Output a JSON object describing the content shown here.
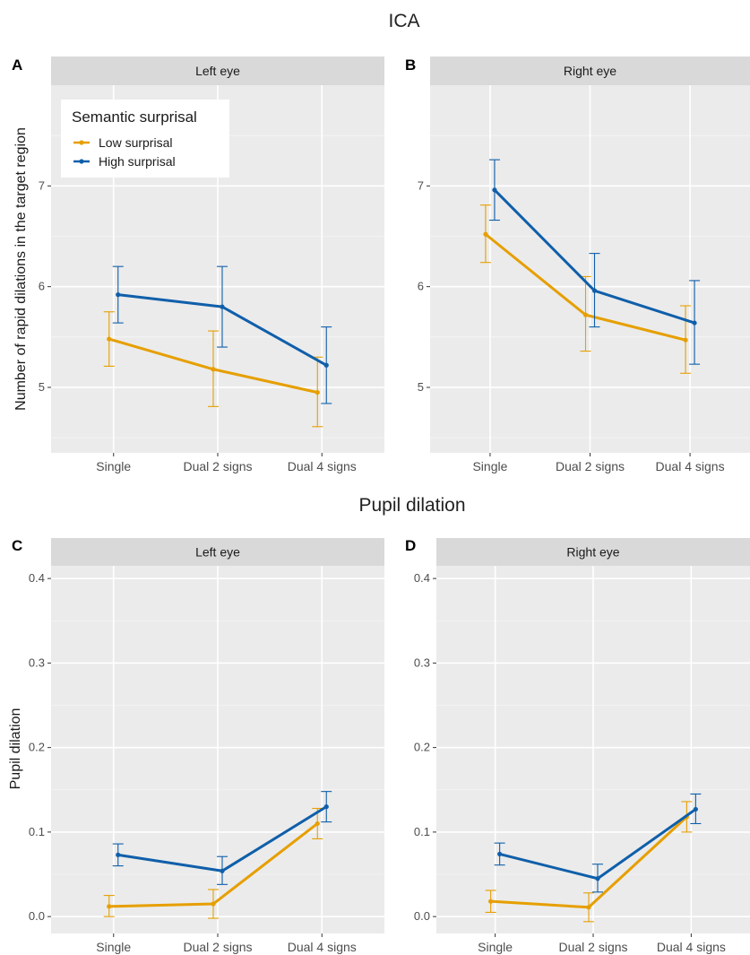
{
  "section_titles": {
    "top": "ICA",
    "bottom": "Pupil dilation"
  },
  "legend": {
    "title": "Semantic surprisal",
    "items": [
      {
        "label": "Low surprisal",
        "color": "#E69F00"
      },
      {
        "label": "High surprisal",
        "color": "#0F5FAA"
      }
    ]
  },
  "chart_data": [
    {
      "panel": "A",
      "type": "line",
      "facet": "Left eye",
      "categories": [
        "Single",
        "Dual 2 signs",
        "Dual 4 signs"
      ],
      "ylabel": "Number of rapid dilations in the target region",
      "ylim": [
        4.35,
        8.0
      ],
      "yticks": [
        5,
        6,
        7
      ],
      "grid": true,
      "series": [
        {
          "name": "Low surprisal",
          "values": [
            5.48,
            5.18,
            4.95
          ],
          "lower": [
            5.21,
            4.81,
            4.61
          ],
          "upper": [
            5.75,
            5.56,
            5.3
          ]
        },
        {
          "name": "High surprisal",
          "values": [
            5.92,
            5.8,
            5.22
          ],
          "lower": [
            5.64,
            5.4,
            4.84
          ],
          "upper": [
            6.2,
            6.2,
            5.6
          ]
        }
      ]
    },
    {
      "panel": "B",
      "type": "line",
      "facet": "Right eye",
      "categories": [
        "Single",
        "Dual 2 signs",
        "Dual 4 signs"
      ],
      "ylabel": "",
      "ylim": [
        4.35,
        8.0
      ],
      "yticks": [
        5,
        6,
        7
      ],
      "grid": true,
      "series": [
        {
          "name": "Low surprisal",
          "values": [
            6.52,
            5.72,
            5.47
          ],
          "lower": [
            6.24,
            5.36,
            5.14
          ],
          "upper": [
            6.81,
            6.1,
            5.81
          ]
        },
        {
          "name": "High surprisal",
          "values": [
            6.96,
            5.96,
            5.64
          ],
          "lower": [
            6.66,
            5.6,
            5.23
          ],
          "upper": [
            7.26,
            6.33,
            6.06
          ]
        }
      ]
    },
    {
      "panel": "C",
      "type": "line",
      "facet": "Left eye",
      "categories": [
        "Single",
        "Dual 2 signs",
        "Dual 4 signs"
      ],
      "ylabel": "Pupil dilation",
      "ylim": [
        -0.02,
        0.415
      ],
      "yticks": [
        0.0,
        0.1,
        0.2,
        0.3,
        0.4
      ],
      "grid": true,
      "series": [
        {
          "name": "Low surprisal",
          "values": [
            0.012,
            0.015,
            0.11
          ],
          "lower": [
            0.0,
            -0.002,
            0.092
          ],
          "upper": [
            0.025,
            0.032,
            0.128
          ]
        },
        {
          "name": "High surprisal",
          "values": [
            0.073,
            0.054,
            0.13
          ],
          "lower": [
            0.06,
            0.038,
            0.112
          ],
          "upper": [
            0.086,
            0.071,
            0.148
          ]
        }
      ]
    },
    {
      "panel": "D",
      "type": "line",
      "facet": "Right eye",
      "categories": [
        "Single",
        "Dual 2 signs",
        "Dual 4 signs"
      ],
      "ylabel": "",
      "ylim": [
        -0.02,
        0.415
      ],
      "yticks": [
        0.0,
        0.1,
        0.2,
        0.3,
        0.4
      ],
      "grid": true,
      "series": [
        {
          "name": "Low surprisal",
          "values": [
            0.018,
            0.011,
            0.118
          ],
          "lower": [
            0.005,
            -0.006,
            0.1
          ],
          "upper": [
            0.031,
            0.028,
            0.136
          ]
        },
        {
          "name": "High surprisal",
          "values": [
            0.074,
            0.045,
            0.127
          ],
          "lower": [
            0.061,
            0.029,
            0.11
          ],
          "upper": [
            0.087,
            0.062,
            0.145
          ]
        }
      ]
    }
  ]
}
